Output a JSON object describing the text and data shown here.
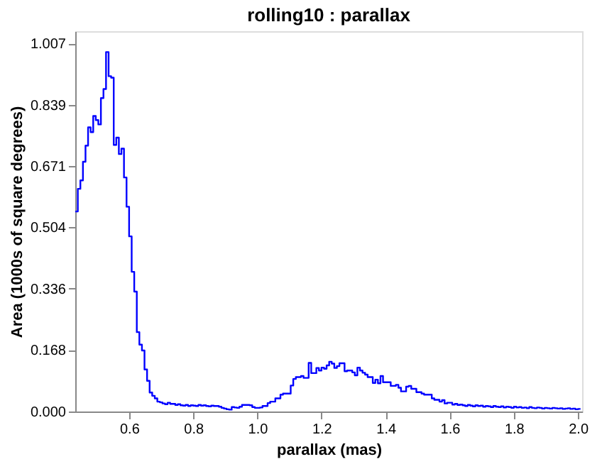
{
  "chart_data": {
    "type": "histogram",
    "title": "rolling10 : parallax",
    "xlabel": "parallax (mas)",
    "ylabel": "Area (1000s of square degrees)",
    "color": "#0000ff",
    "grid": false,
    "bins": [
      0.432,
      0.44,
      0.448,
      0.456,
      0.464,
      0.472,
      0.48,
      0.488,
      0.496,
      0.504,
      0.512,
      0.52,
      0.528,
      0.536,
      0.544,
      0.552,
      0.56,
      0.568,
      0.576,
      0.584,
      0.592,
      0.6,
      0.608,
      0.616,
      0.624,
      0.632,
      0.64,
      0.648,
      0.656,
      0.664,
      0.672,
      0.68,
      0.688,
      0.696,
      0.704,
      0.712,
      0.72,
      0.728,
      0.736,
      0.744,
      0.752,
      0.76,
      0.768,
      0.776,
      0.784,
      0.792,
      0.8,
      0.808,
      0.816,
      0.824,
      0.832,
      0.84,
      0.848,
      0.856,
      0.864,
      0.872,
      0.88,
      0.888,
      0.896,
      0.904,
      0.912,
      0.92,
      0.928,
      0.936,
      0.944,
      0.952,
      0.96,
      0.968,
      0.976,
      0.984,
      0.992,
      1.0,
      1.008,
      1.016,
      1.024,
      1.032,
      1.04,
      1.048,
      1.056,
      1.064,
      1.072,
      1.08,
      1.088,
      1.096,
      1.104,
      1.112,
      1.12,
      1.128,
      1.136,
      1.144,
      1.152,
      1.16,
      1.168,
      1.176,
      1.184,
      1.192,
      1.2,
      1.208,
      1.216,
      1.224,
      1.232,
      1.24,
      1.248,
      1.256,
      1.264,
      1.272,
      1.28,
      1.288,
      1.296,
      1.304,
      1.312,
      1.32,
      1.328,
      1.336,
      1.344,
      1.352,
      1.36,
      1.368,
      1.376,
      1.384,
      1.392,
      1.4,
      1.408,
      1.416,
      1.424,
      1.432,
      1.44,
      1.448,
      1.456,
      1.464,
      1.472,
      1.48,
      1.488,
      1.496,
      1.504,
      1.512,
      1.52,
      1.528,
      1.536,
      1.544,
      1.552,
      1.56,
      1.568,
      1.576,
      1.584,
      1.592,
      1.6,
      1.608,
      1.616,
      1.624,
      1.632,
      1.64,
      1.648,
      1.656,
      1.664,
      1.672,
      1.68,
      1.688,
      1.696,
      1.704,
      1.712,
      1.72,
      1.728,
      1.736,
      1.744,
      1.752,
      1.76,
      1.768,
      1.776,
      1.784,
      1.792,
      1.8,
      1.808,
      1.816,
      1.824,
      1.832,
      1.84,
      1.848,
      1.856,
      1.864,
      1.872,
      1.88,
      1.888,
      1.896,
      1.904,
      1.912,
      1.92,
      1.928,
      1.936,
      1.944,
      1.952,
      1.96,
      1.968,
      1.976,
      1.984,
      1.992,
      2.0,
      2.008
    ],
    "values": [
      0.547,
      0.609,
      0.632,
      0.683,
      0.727,
      0.777,
      0.764,
      0.808,
      0.797,
      0.785,
      0.857,
      0.882,
      0.983,
      0.917,
      0.913,
      0.729,
      0.749,
      0.704,
      0.719,
      0.64,
      0.56,
      0.479,
      0.382,
      0.328,
      0.217,
      0.183,
      0.167,
      0.115,
      0.084,
      0.052,
      0.043,
      0.036,
      0.027,
      0.025,
      0.022,
      0.02,
      0.024,
      0.021,
      0.021,
      0.018,
      0.02,
      0.017,
      0.016,
      0.018,
      0.015,
      0.017,
      0.016,
      0.015,
      0.018,
      0.016,
      0.017,
      0.015,
      0.014,
      0.016,
      0.015,
      0.015,
      0.013,
      0.01,
      0.008,
      0.006,
      0.005,
      0.012,
      0.011,
      0.01,
      0.013,
      0.018,
      0.018,
      0.018,
      0.017,
      0.012,
      0.01,
      0.01,
      0.011,
      0.015,
      0.015,
      0.023,
      0.027,
      0.027,
      0.036,
      0.036,
      0.046,
      0.049,
      0.049,
      0.049,
      0.071,
      0.089,
      0.094,
      0.094,
      0.097,
      0.092,
      0.092,
      0.133,
      0.105,
      0.105,
      0.119,
      0.112,
      0.12,
      0.117,
      0.126,
      0.136,
      0.131,
      0.119,
      0.124,
      0.132,
      0.132,
      0.11,
      0.112,
      0.112,
      0.107,
      0.099,
      0.12,
      0.112,
      0.106,
      0.101,
      0.094,
      0.094,
      0.078,
      0.087,
      0.077,
      0.097,
      0.08,
      0.08,
      0.08,
      0.07,
      0.07,
      0.073,
      0.065,
      0.055,
      0.055,
      0.068,
      0.07,
      0.062,
      0.062,
      0.053,
      0.053,
      0.049,
      0.046,
      0.046,
      0.046,
      0.036,
      0.032,
      0.032,
      0.027,
      0.031,
      0.022,
      0.024,
      0.024,
      0.019,
      0.021,
      0.018,
      0.019,
      0.017,
      0.015,
      0.018,
      0.016,
      0.014,
      0.017,
      0.015,
      0.016,
      0.013,
      0.015,
      0.014,
      0.012,
      0.015,
      0.013,
      0.012,
      0.014,
      0.011,
      0.013,
      0.012,
      0.01,
      0.013,
      0.011,
      0.012,
      0.01,
      0.011,
      0.009,
      0.012,
      0.01,
      0.009,
      0.011,
      0.01,
      0.008,
      0.01,
      0.009,
      0.008,
      0.01,
      0.009,
      0.008,
      0.009,
      0.007,
      0.008,
      0.009,
      0.007,
      0.008,
      0.006,
      0.007
    ],
    "xlim": [
      0.432,
      2.013
    ],
    "ylim": [
      0,
      1.04
    ],
    "xticks": [
      0.6,
      0.8,
      {
        "value": 1.0,
        "label": "1.0"
      },
      1.2,
      1.4,
      1.6,
      1.8,
      {
        "value": 2.0,
        "label": "2.0"
      }
    ],
    "yticks": [
      {
        "value": 0,
        "label": "0.000"
      },
      {
        "value": 0.168,
        "label": "0.168"
      },
      {
        "value": 0.336,
        "label": "0.336"
      },
      {
        "value": 0.504,
        "label": "0.504"
      },
      {
        "value": 0.671,
        "label": "0.671"
      },
      {
        "value": 0.839,
        "label": "0.839"
      },
      {
        "value": 1.007,
        "label": "1.007"
      }
    ]
  }
}
